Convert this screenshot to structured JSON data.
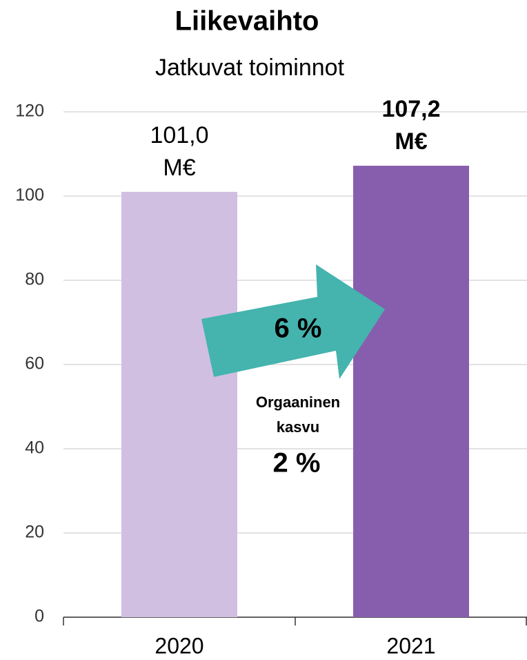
{
  "chart_data": {
    "type": "bar",
    "title": "Liikevaihto",
    "subtitle": "Jatkuvat toiminnot",
    "categories": [
      "2020",
      "2021"
    ],
    "values": [
      101.0,
      107.2
    ],
    "value_labels": [
      "101,0\nM€",
      "107,2\nM€"
    ],
    "value_label_weights": [
      "normal",
      "bold"
    ],
    "colors": [
      "#d0bfe1",
      "#875ead"
    ],
    "ylim": [
      0,
      120
    ],
    "yticks": [
      0,
      20,
      40,
      60,
      80,
      100,
      120
    ],
    "grid": true,
    "annotations": [
      "6 %",
      "Orgaaninen\nkasvu",
      "2 %"
    ]
  }
}
